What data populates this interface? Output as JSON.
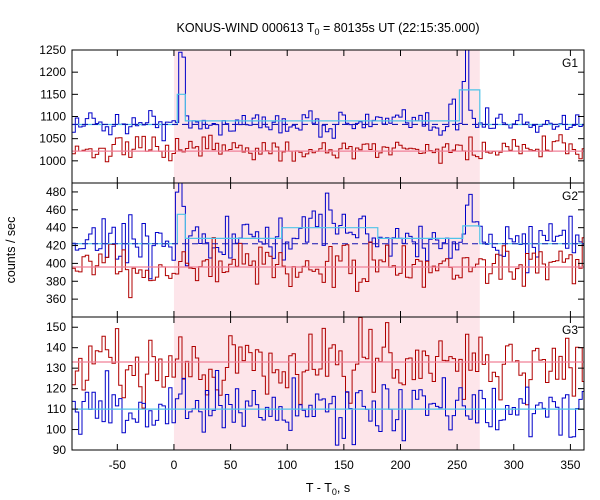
{
  "title_main": "KONUS-WIND 000613 T",
  "title_sub": "0",
  "title_rest": " = 80135s UT (22:15:35.000)",
  "xlabel_main": "T - T",
  "xlabel_sub": "0",
  "xlabel_rest": ", s",
  "ylabel": "counts / sec",
  "colors": {
    "blue": "#0000c8",
    "red": "#b00000",
    "cyan": "#4fc3e8",
    "pink": "#f08098",
    "shade": "#fde5ea",
    "dash": "#1515b0"
  },
  "chart_data": {
    "type": "line",
    "x_range": [
      -90,
      362
    ],
    "x_ticks": [
      -50,
      0,
      50,
      100,
      150,
      200,
      250,
      300,
      350
    ],
    "shaded_interval": [
      0,
      270
    ],
    "bin_width": 2.944,
    "panels": [
      {
        "label": "G1",
        "ylim": [
          950,
          1250
        ],
        "y_ticks": [
          950,
          1000,
          1050,
          1100,
          1150,
          1200,
          1250
        ],
        "series": [
          {
            "color": "blue",
            "mean": 1085,
            "amp": 14,
            "spikes": [
              [
                5,
                100
              ],
              [
                7,
                45
              ],
              [
                245,
                50
              ],
              [
                255,
                100
              ],
              [
                258,
                55
              ]
            ]
          },
          {
            "color": "red",
            "mean": 1025,
            "amp": 14,
            "spikes": []
          }
        ],
        "fits": [
          {
            "color": "cyan",
            "steps": [
              [
                -90,
                1082
              ],
              [
                0,
                1082
              ],
              [
                3,
                1150
              ],
              [
                10,
                1090
              ],
              [
                250,
                1090
              ],
              [
                252,
                1160
              ],
              [
                270,
                1082
              ],
              [
                362,
                1082
              ]
            ]
          },
          {
            "color": "pink",
            "steps": [
              [
                -90,
                1022
              ],
              [
                362,
                1022
              ]
            ]
          }
        ],
        "dashed_level": 1082
      },
      {
        "label": "G2",
        "ylim": [
          340,
          490
        ],
        "y_ticks": [
          340,
          360,
          380,
          400,
          420,
          440,
          460,
          480
        ],
        "series": [
          {
            "color": "blue",
            "mean": 425,
            "amp": 13,
            "spikes": [
              [
                4,
                55
              ],
              [
                6,
                30
              ],
              [
                258,
                40
              ]
            ],
            "bump": [
              [
                95,
                180,
                22
              ]
            ]
          },
          {
            "color": "red",
            "mean": 395,
            "amp": 12,
            "spikes": []
          }
        ],
        "fits": [
          {
            "color": "cyan",
            "steps": [
              [
                -90,
                422
              ],
              [
                0,
                422
              ],
              [
                3,
                455
              ],
              [
                10,
                428
              ],
              [
                95,
                440
              ],
              [
                180,
                428
              ],
              [
                250,
                428
              ],
              [
                255,
                442
              ],
              [
                270,
                422
              ],
              [
                362,
                422
              ]
            ]
          },
          {
            "color": "pink",
            "steps": [
              [
                -90,
                396
              ],
              [
                362,
                396
              ]
            ]
          }
        ],
        "dashed_level": 422
      },
      {
        "label": "G3",
        "ylim": [
          90,
          155
        ],
        "y_ticks": [
          90,
          100,
          110,
          120,
          130,
          140,
          150
        ],
        "series": [
          {
            "color": "red",
            "mean": 132,
            "amp": 9,
            "spikes": []
          },
          {
            "color": "blue",
            "mean": 110,
            "amp": 7,
            "spikes": []
          }
        ],
        "fits": [
          {
            "color": "pink",
            "steps": [
              [
                -90,
                133
              ],
              [
                362,
                133
              ]
            ]
          },
          {
            "color": "cyan",
            "steps": [
              [
                -90,
                110
              ],
              [
                362,
                110
              ]
            ]
          }
        ],
        "dashed_level": null
      }
    ]
  }
}
